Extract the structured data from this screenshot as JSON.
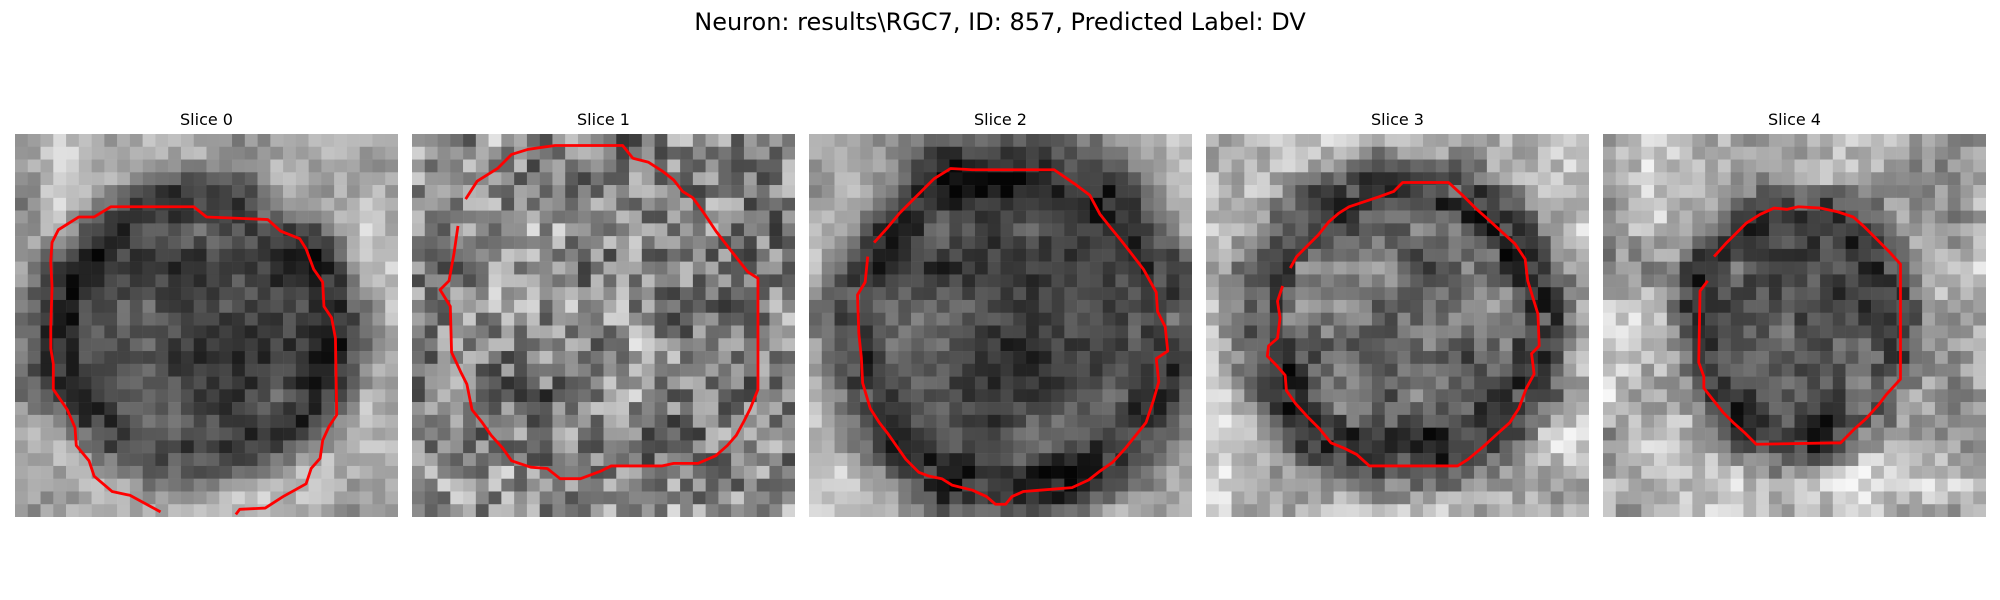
{
  "figure": {
    "title": "Neuron: results\\RGC7, ID: 857, Predicted Label: DV"
  },
  "panels": [
    {
      "title": "Slice 0"
    },
    {
      "title": "Slice 1"
    },
    {
      "title": "Slice 2"
    },
    {
      "title": "Slice 3"
    },
    {
      "title": "Slice 4"
    }
  ],
  "style": {
    "contour_color": "#ff0000",
    "colormap": "grayscale"
  }
}
